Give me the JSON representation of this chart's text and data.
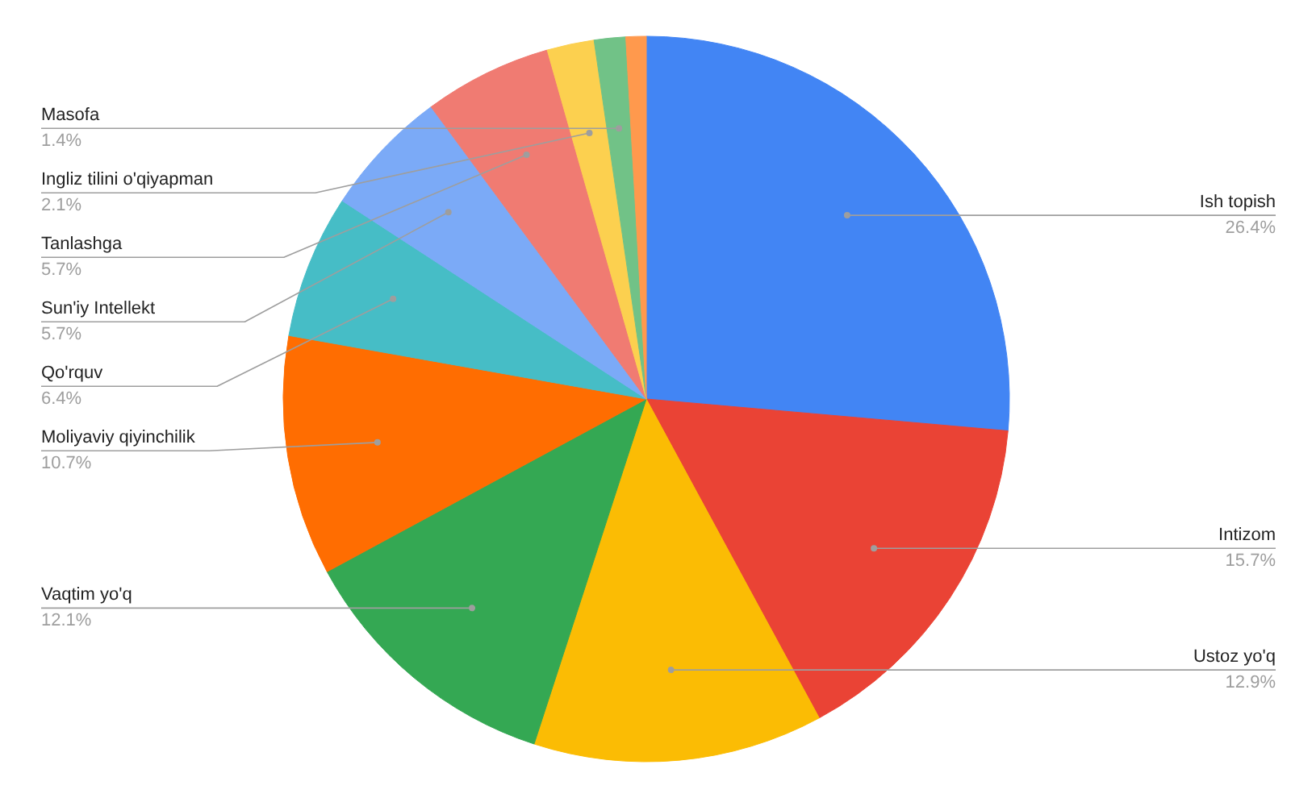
{
  "chart_data": {
    "type": "pie",
    "categories": [
      "Ish topish",
      "Intizom",
      "Ustoz yo'q",
      "Vaqtim yo'q",
      "Moliyaviy qiyinchilik",
      "Qo'rquv",
      "Sun'iy Intellekt",
      "Tanlashga",
      "Ingliz tilini o'qiyapman",
      "Masofa",
      null
    ],
    "values": [
      26.4,
      15.7,
      12.9,
      12.1,
      10.7,
      6.4,
      5.7,
      5.7,
      2.1,
      1.4,
      0.9
    ],
    "value_labels": [
      "26.4%",
      "15.7%",
      "12.9%",
      "12.1%",
      "10.7%",
      "6.4%",
      "5.7%",
      "5.7%",
      "2.1%",
      "1.4%",
      null
    ],
    "colors": [
      "#4285f4",
      "#ea4335",
      "#fbbc04",
      "#34a853",
      "#ff6d01",
      "#46bdc6",
      "#7baaf7",
      "#f07b72",
      "#fcd04f",
      "#71c287",
      "#ff994d"
    ]
  }
}
